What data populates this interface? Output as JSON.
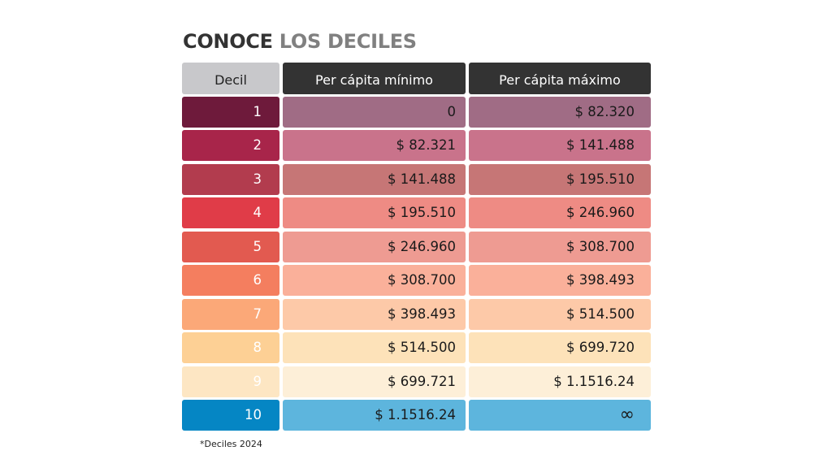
{
  "title": {
    "strong": "CONOCE",
    "light": "LOS DECILES"
  },
  "table": {
    "headers": {
      "decil": "Decil",
      "min": "Per cápita mínimo",
      "max": "Per cápita máximo"
    },
    "rows": [
      {
        "decil": "1",
        "min": "0",
        "max": "$ 82.320",
        "decil_color": "#6e1a3b",
        "row_color": "#a06c85"
      },
      {
        "decil": "2",
        "min": "$ 82.321",
        "max": "$ 141.488",
        "decil_color": "#a8254a",
        "row_color": "#c9738b"
      },
      {
        "decil": "3",
        "min": "$ 141.488",
        "max": "$ 195.510",
        "decil_color": "#b23c4e",
        "row_color": "#c67676"
      },
      {
        "decil": "4",
        "min": "$ 195.510",
        "max": "$ 246.960",
        "decil_color": "#e03c48",
        "row_color": "#ee8b84"
      },
      {
        "decil": "5",
        "min": "$ 246.960",
        "max": "$ 308.700",
        "decil_color": "#e25a50",
        "row_color": "#ee9b92"
      },
      {
        "decil": "6",
        "min": "$ 308.700",
        "max": "$ 398.493",
        "decil_color": "#f47e5f",
        "row_color": "#fab09a"
      },
      {
        "decil": "7",
        "min": "$ 398.493",
        "max": "$ 514.500",
        "decil_color": "#fba878",
        "row_color": "#fdc9a8"
      },
      {
        "decil": "8",
        "min": "$ 514.500",
        "max": "$ 699.720",
        "decil_color": "#fdd095",
        "row_color": "#fde2b9"
      },
      {
        "decil": "9",
        "min": "$ 699.721",
        "max": "$ 1.1516.24",
        "decil_color": "#fde6c3",
        "row_color": "#fdefd8"
      },
      {
        "decil": "10",
        "min": "$ 1.1516.24",
        "max": "∞",
        "decil_color": "#0586c4",
        "row_color": "#5db5dd"
      }
    ]
  },
  "footnote": "*Deciles 2024"
}
